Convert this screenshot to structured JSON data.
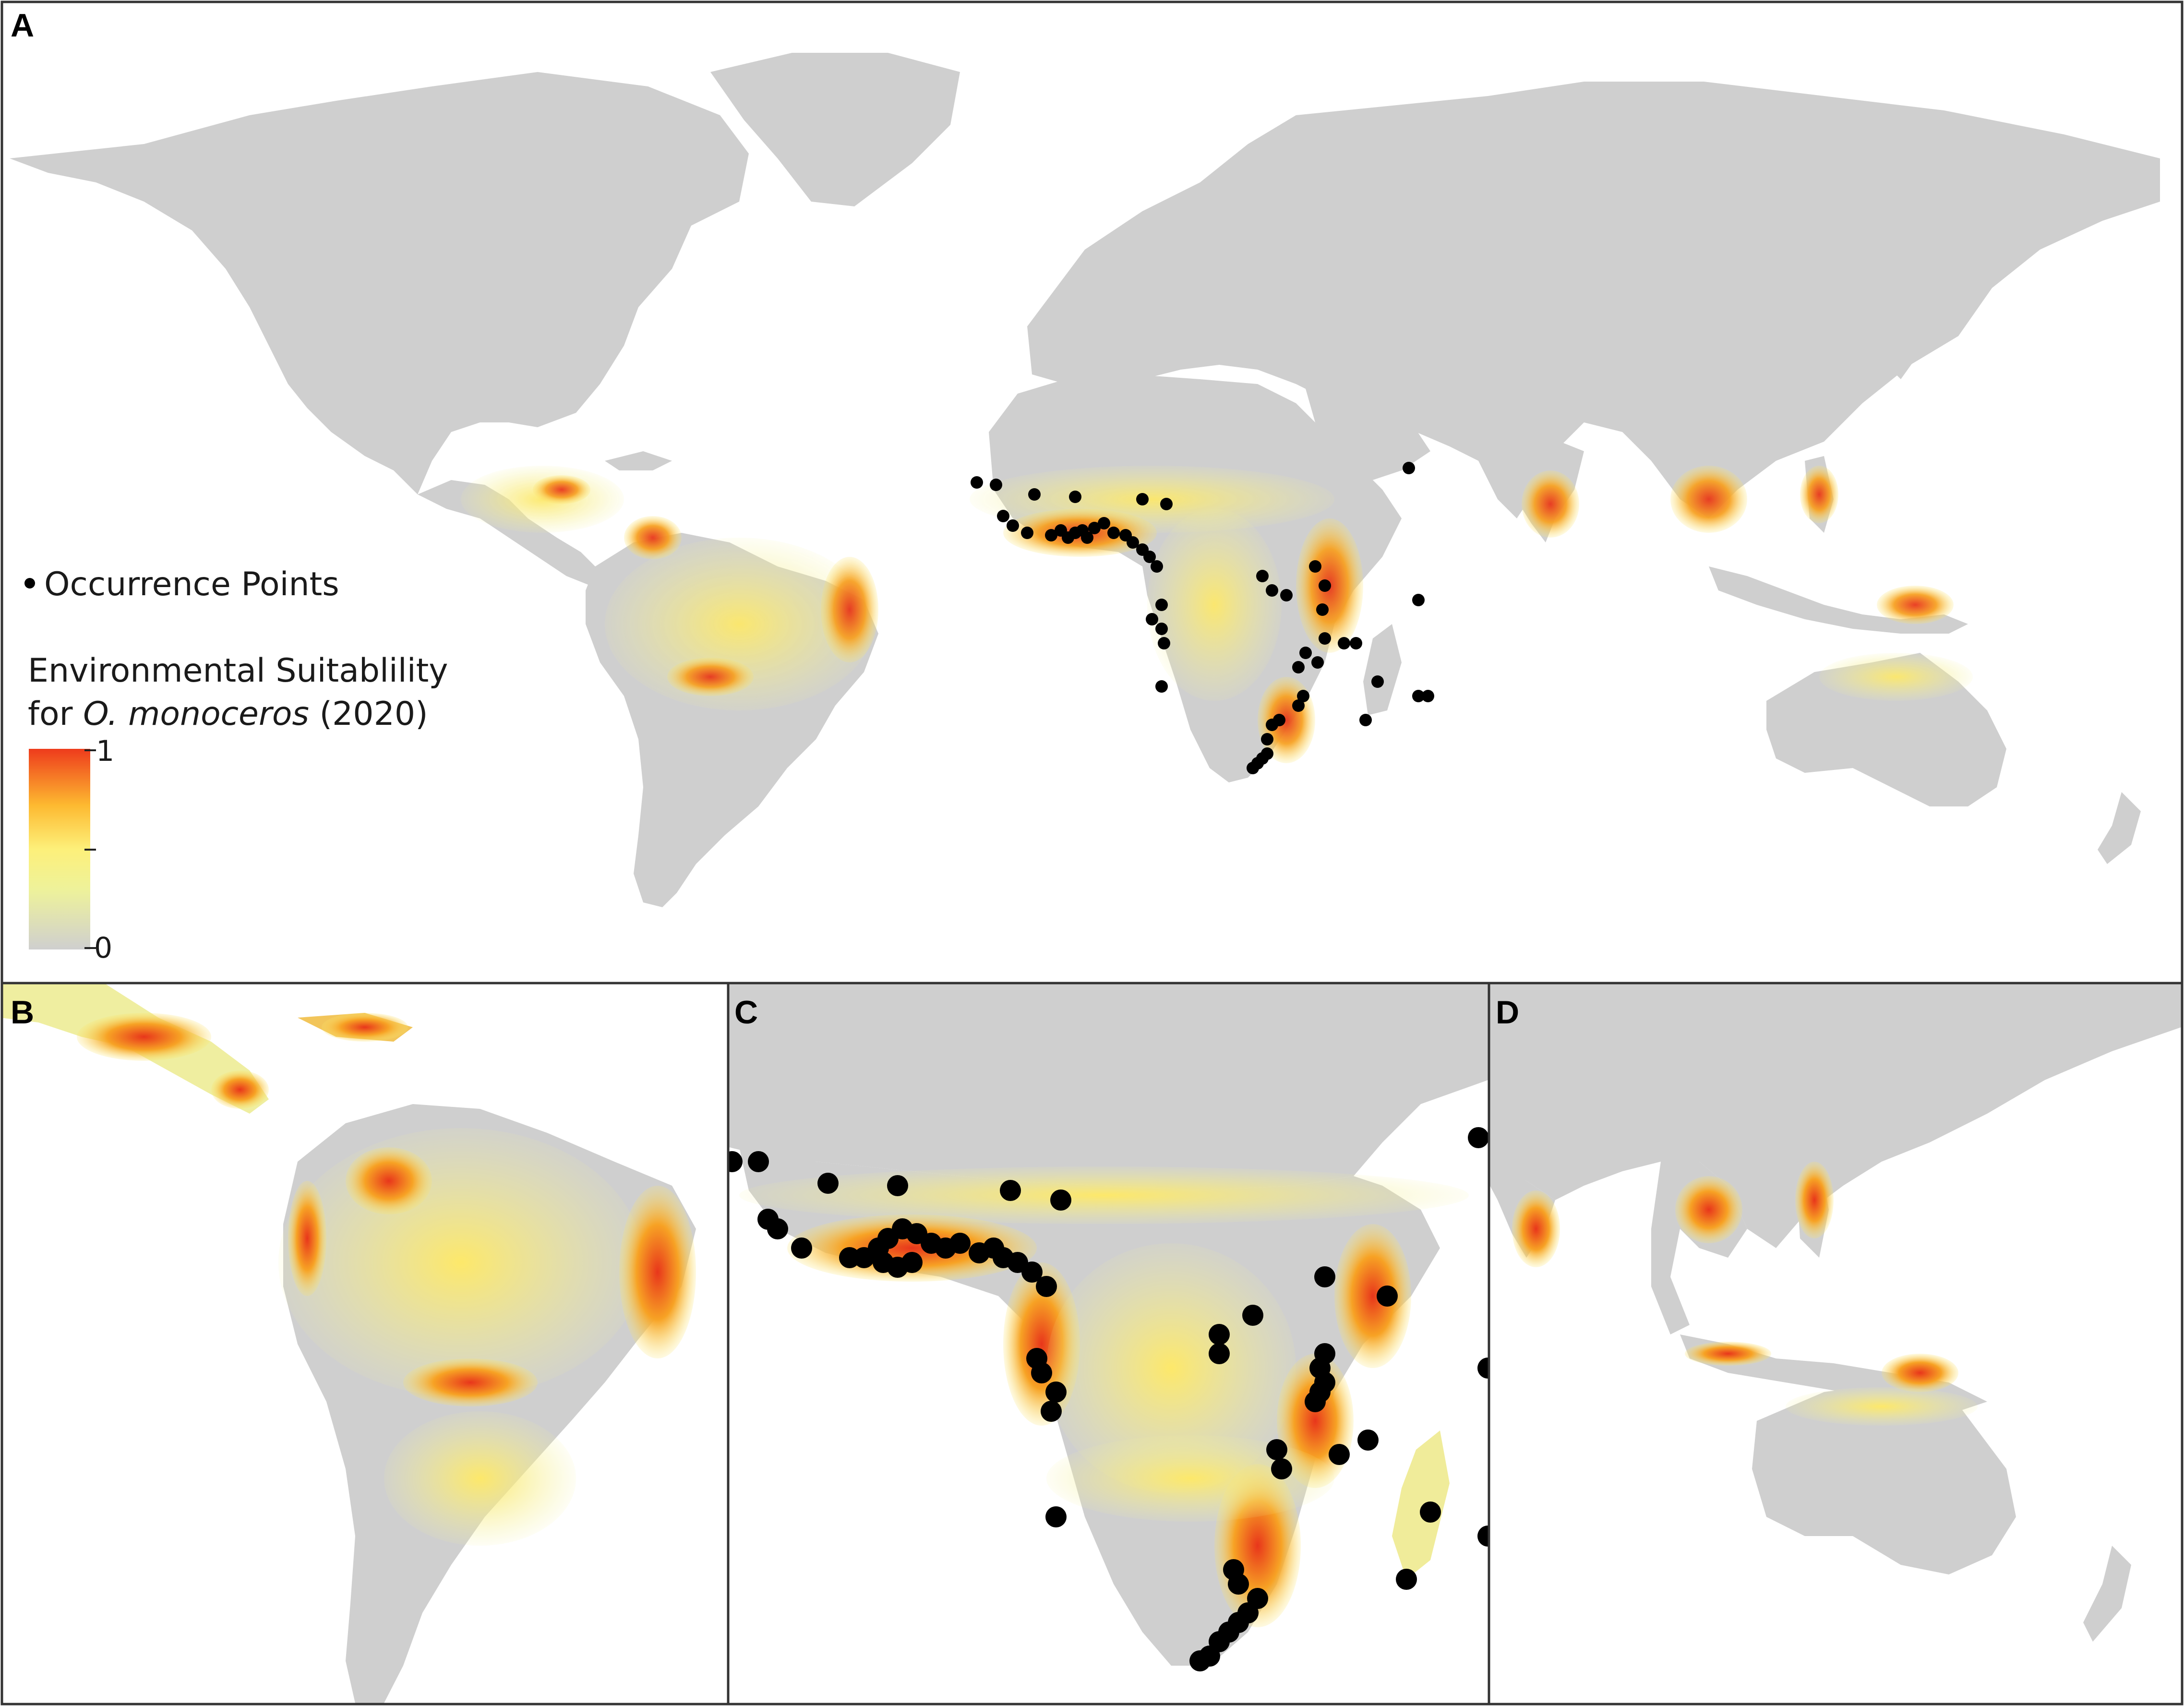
{
  "panels": [
    {
      "id": "A",
      "label": "A"
    },
    {
      "id": "B",
      "label": "B"
    },
    {
      "id": "C",
      "label": "C"
    },
    {
      "id": "D",
      "label": "D"
    }
  ],
  "legend": {
    "occurrence_label": "Occurrence Points",
    "title_line1": "Environmental Suitablility",
    "title_line2_prefix": "for ",
    "species": "O. monoceros",
    "title_line2_suffix": " (2020)",
    "scale_max": "1",
    "scale_min": "0",
    "colors": {
      "low": "#cfcfcf",
      "mid": "#fdf07a",
      "midhigh": "#fdb930",
      "high": "#ee3b1c"
    }
  },
  "colors": {
    "land": "#cfcfcf",
    "water": "#ffffff",
    "occurrence": "#000000",
    "border": "#333333"
  }
}
